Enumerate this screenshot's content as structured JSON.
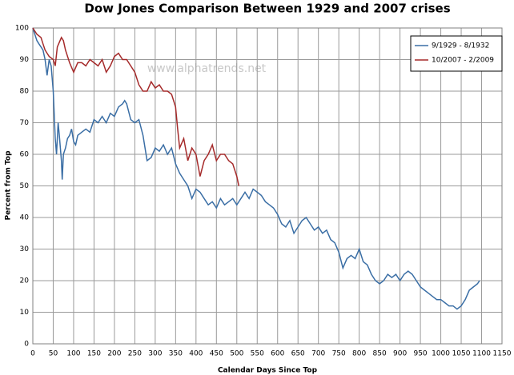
{
  "chart_data": {
    "type": "line",
    "title": "Dow Jones Comparison Between 1929 and 2007 crises",
    "x_label": "Calendar Days Since Top",
    "y_label": "Percent from Top",
    "annotation": "www.alphatrends.net",
    "xlim": [
      0,
      1150
    ],
    "xticks": [
      0,
      50,
      100,
      150,
      200,
      250,
      300,
      350,
      400,
      450,
      500,
      550,
      600,
      650,
      700,
      750,
      800,
      850,
      900,
      950,
      1000,
      1050,
      1100,
      1150
    ],
    "ylim": [
      0,
      100
    ],
    "yticks": [
      0,
      10,
      20,
      30,
      40,
      50,
      60,
      70,
      80,
      90,
      100
    ],
    "grid": true,
    "legend": "upper right",
    "series": [
      {
        "name": "9/1929 - 8/1932",
        "color": "#3a6ea5",
        "x": [
          0,
          5,
          10,
          15,
          20,
          25,
          30,
          35,
          40,
          45,
          50,
          55,
          58,
          62,
          65,
          70,
          72,
          75,
          80,
          85,
          90,
          95,
          100,
          105,
          110,
          120,
          130,
          140,
          150,
          160,
          170,
          180,
          190,
          200,
          210,
          220,
          225,
          230,
          240,
          250,
          260,
          270,
          280,
          290,
          300,
          310,
          320,
          330,
          340,
          350,
          360,
          370,
          380,
          390,
          400,
          410,
          420,
          430,
          440,
          450,
          460,
          470,
          480,
          490,
          500,
          510,
          520,
          530,
          540,
          550,
          560,
          570,
          580,
          590,
          600,
          610,
          620,
          630,
          640,
          650,
          660,
          670,
          680,
          690,
          700,
          710,
          720,
          730,
          740,
          750,
          760,
          770,
          780,
          790,
          800,
          810,
          820,
          830,
          840,
          850,
          860,
          870,
          880,
          890,
          900,
          910,
          920,
          930,
          940,
          950,
          960,
          970,
          980,
          990,
          1000,
          1010,
          1020,
          1030,
          1040,
          1050,
          1060,
          1070,
          1080,
          1090,
          1095
        ],
        "values": [
          100,
          98,
          96,
          95,
          94,
          93,
          90,
          85,
          90,
          88,
          80,
          65,
          60,
          70,
          66,
          58,
          52,
          60,
          62,
          65,
          66,
          68,
          64,
          63,
          66,
          67,
          68,
          67,
          71,
          70,
          72,
          70,
          73,
          72,
          75,
          76,
          77,
          76,
          71,
          70,
          71,
          66,
          58,
          59,
          62,
          61,
          63,
          60,
          62,
          57,
          54,
          52,
          50,
          46,
          49,
          48,
          46,
          44,
          45,
          43,
          46,
          44,
          45,
          46,
          44,
          46,
          48,
          46,
          49,
          48,
          47,
          45,
          44,
          43,
          41,
          38,
          37,
          39,
          35,
          37,
          39,
          40,
          38,
          36,
          37,
          35,
          36,
          33,
          32,
          29,
          24,
          27,
          28,
          27,
          30,
          26,
          25,
          22,
          20,
          19,
          20,
          22,
          21,
          22,
          20,
          22,
          23,
          22,
          20,
          18,
          17,
          16,
          15,
          14,
          14,
          13,
          12,
          12,
          11,
          12,
          14,
          17,
          18,
          19,
          20
        ]
      },
      {
        "name": "10/2007 - 2/2009",
        "color": "#a52a2a",
        "x": [
          0,
          10,
          20,
          25,
          30,
          40,
          50,
          55,
          60,
          70,
          75,
          80,
          90,
          100,
          110,
          120,
          130,
          140,
          150,
          160,
          170,
          180,
          190,
          200,
          210,
          220,
          230,
          240,
          250,
          260,
          270,
          280,
          290,
          300,
          310,
          320,
          330,
          340,
          350,
          355,
          360,
          370,
          380,
          390,
          400,
          410,
          420,
          430,
          440,
          450,
          460,
          470,
          480,
          490,
          500,
          505
        ],
        "values": [
          100,
          98,
          97,
          95,
          93,
          91,
          90,
          88,
          94,
          97,
          96,
          93,
          89,
          86,
          89,
          89,
          88,
          90,
          89,
          88,
          90,
          86,
          88,
          91,
          92,
          90,
          90,
          88,
          86,
          82,
          80,
          80,
          83,
          81,
          82,
          80,
          80,
          79,
          75,
          68,
          62,
          65,
          58,
          62,
          60,
          53,
          58,
          60,
          63,
          58,
          60,
          60,
          58,
          57,
          53,
          50
        ]
      }
    ]
  }
}
